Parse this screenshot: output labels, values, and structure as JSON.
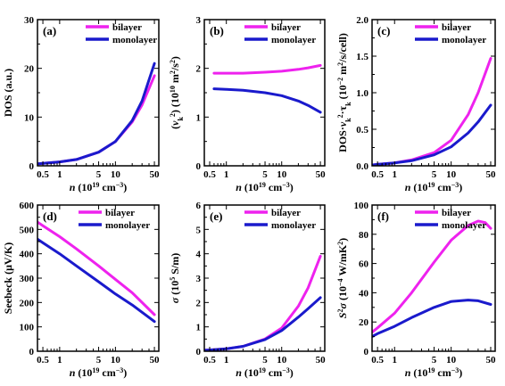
{
  "colors": {
    "bilayer": "#ee22ee",
    "monolayer": "#1a1acc"
  },
  "chart_data": [
    {
      "panel": "(a)",
      "type": "line",
      "ylabel_parts": [
        {
          "t": "DOS (a.u.)"
        }
      ],
      "xlabel_parts": [
        {
          "t": "n",
          "i": true
        },
        {
          "t": " (10"
        },
        {
          "t": "19",
          "s": "sup"
        },
        {
          "t": " cm"
        },
        {
          "t": "−3",
          "s": "sup"
        },
        {
          "t": ")"
        }
      ],
      "xscale": "log",
      "xlim": [
        0.4,
        60
      ],
      "ylim": [
        0,
        30
      ],
      "xticks": [
        0.5,
        1,
        5,
        10,
        50
      ],
      "xtick_labels": [
        "0.5",
        "1",
        "5",
        "10",
        "50"
      ],
      "yticks": [
        0,
        10,
        20,
        30
      ],
      "ytick_labels": [
        "0",
        "10",
        "20",
        "30"
      ],
      "legend": "top-left-inside",
      "series": [
        {
          "name": "bilayer",
          "x": [
            0.4,
            0.5,
            1,
            2,
            5,
            10,
            20,
            30,
            50
          ],
          "y": [
            0.4,
            0.5,
            0.8,
            1.3,
            2.8,
            5.0,
            9.0,
            12.5,
            18.5
          ]
        },
        {
          "name": "monolayer",
          "x": [
            0.4,
            0.5,
            1,
            2,
            5,
            10,
            20,
            30,
            50
          ],
          "y": [
            0.4,
            0.5,
            0.8,
            1.3,
            2.8,
            5.0,
            9.3,
            13.3,
            21.0
          ]
        }
      ]
    },
    {
      "panel": "(b)",
      "type": "line",
      "ylabel_parts": [
        {
          "t": "("
        },
        {
          "t": "v",
          "i": true
        },
        {
          "t": "k",
          "s": "sub"
        },
        {
          "t": "2",
          "s": "sup"
        },
        {
          "t": ") (10"
        },
        {
          "t": "10",
          "s": "sup"
        },
        {
          "t": " m"
        },
        {
          "t": "2",
          "s": "sup"
        },
        {
          "t": "/s"
        },
        {
          "t": "2",
          "s": "sup"
        },
        {
          "t": ")"
        }
      ],
      "xlabel_parts": [
        {
          "t": "n",
          "i": true
        },
        {
          "t": " (10"
        },
        {
          "t": "19",
          "s": "sup"
        },
        {
          "t": " cm"
        },
        {
          "t": "−3",
          "s": "sup"
        },
        {
          "t": ")"
        }
      ],
      "xscale": "log",
      "xlim": [
        0.4,
        60
      ],
      "ylim": [
        0,
        3
      ],
      "xticks": [
        0.5,
        1,
        5,
        10,
        50
      ],
      "xtick_labels": [
        "0.5",
        "1",
        "5",
        "10",
        "50"
      ],
      "yticks": [
        0,
        1,
        2,
        3
      ],
      "ytick_labels": [
        "0",
        "1",
        "2",
        "3"
      ],
      "legend": "top-right",
      "series": [
        {
          "name": "bilayer",
          "x": [
            0.6,
            1,
            2,
            5,
            10,
            20,
            30,
            50
          ],
          "y": [
            1.9,
            1.9,
            1.9,
            1.92,
            1.94,
            1.98,
            2.01,
            2.06
          ]
        },
        {
          "name": "monolayer",
          "x": [
            0.6,
            1,
            2,
            5,
            10,
            20,
            30,
            50
          ],
          "y": [
            1.58,
            1.57,
            1.55,
            1.5,
            1.44,
            1.33,
            1.24,
            1.1
          ]
        }
      ]
    },
    {
      "panel": "(c)",
      "type": "line",
      "ylabel_parts": [
        {
          "t": "DOS·"
        },
        {
          "t": "v",
          "i": true
        },
        {
          "t": "k",
          "s": "sub"
        },
        {
          "t": "2",
          "s": "sup"
        },
        {
          "t": "·τ"
        },
        {
          "t": "k",
          "s": "sub"
        },
        {
          "t": " (10"
        },
        {
          "t": "−2",
          "s": "sup"
        },
        {
          "t": " m"
        },
        {
          "t": "2",
          "s": "sup"
        },
        {
          "t": "/s/cell)"
        }
      ],
      "xlabel_parts": [
        {
          "t": "n",
          "i": true
        },
        {
          "t": " (10"
        },
        {
          "t": "19",
          "s": "sup"
        },
        {
          "t": " cm"
        },
        {
          "t": "−3",
          "s": "sup"
        },
        {
          "t": ")"
        }
      ],
      "xscale": "log",
      "xlim": [
        0.4,
        60
      ],
      "ylim": [
        0,
        2.0
      ],
      "xticks": [
        0.5,
        1,
        5,
        10,
        50
      ],
      "xtick_labels": [
        "0.5",
        "1",
        "5",
        "10",
        "50"
      ],
      "yticks": [
        0,
        0.5,
        1.0,
        1.5,
        2.0
      ],
      "ytick_labels": [
        "0.0",
        "0.5",
        "1.0",
        "1.5",
        "2.0"
      ],
      "legend": "top-right",
      "series": [
        {
          "name": "bilayer",
          "x": [
            0.4,
            0.5,
            1,
            2,
            5,
            10,
            20,
            30,
            50
          ],
          "y": [
            0.01,
            0.02,
            0.04,
            0.08,
            0.18,
            0.35,
            0.7,
            1.0,
            1.47
          ]
        },
        {
          "name": "monolayer",
          "x": [
            0.4,
            0.5,
            1,
            2,
            5,
            10,
            20,
            30,
            50
          ],
          "y": [
            0.01,
            0.02,
            0.04,
            0.07,
            0.15,
            0.26,
            0.45,
            0.6,
            0.83
          ]
        }
      ]
    },
    {
      "panel": "(d)",
      "type": "line",
      "ylabel_parts": [
        {
          "t": "Seebeck (μV/K)"
        }
      ],
      "xlabel_parts": [
        {
          "t": "n",
          "i": true
        },
        {
          "t": " (10"
        },
        {
          "t": "19",
          "s": "sup"
        },
        {
          "t": " cm"
        },
        {
          "t": "−3",
          "s": "sup"
        },
        {
          "t": ")"
        }
      ],
      "xscale": "log",
      "xlim": [
        0.4,
        60
      ],
      "ylim": [
        0,
        600
      ],
      "xticks": [
        0.5,
        1,
        5,
        10,
        50
      ],
      "xtick_labels": [
        "0.5",
        "1",
        "5",
        "10",
        "50"
      ],
      "yticks": [
        0,
        100,
        200,
        300,
        400,
        500,
        600
      ],
      "ytick_labels": [
        "0",
        "100",
        "200",
        "300",
        "400",
        "500",
        "600"
      ],
      "legend": "top-right",
      "series": [
        {
          "name": "bilayer",
          "x": [
            0.4,
            0.5,
            1,
            2,
            5,
            10,
            20,
            50
          ],
          "y": [
            530,
            515,
            470,
            420,
            350,
            295,
            240,
            150
          ]
        },
        {
          "name": "monolayer",
          "x": [
            0.4,
            0.5,
            1,
            2,
            5,
            10,
            20,
            50
          ],
          "y": [
            460,
            445,
            400,
            350,
            285,
            235,
            190,
            122
          ]
        }
      ]
    },
    {
      "panel": "(e)",
      "type": "line",
      "ylabel_parts": [
        {
          "t": "σ",
          "i": true
        },
        {
          "t": " (10"
        },
        {
          "t": "5",
          "s": "sup"
        },
        {
          "t": " S/m)"
        }
      ],
      "xlabel_parts": [
        {
          "t": "n",
          "i": true
        },
        {
          "t": " (10"
        },
        {
          "t": "19",
          "s": "sup"
        },
        {
          "t": " cm"
        },
        {
          "t": "−3",
          "s": "sup"
        },
        {
          "t": ")"
        }
      ],
      "xscale": "log",
      "xlim": [
        0.4,
        60
      ],
      "ylim": [
        0,
        6
      ],
      "xticks": [
        0.5,
        1,
        5,
        10,
        50
      ],
      "xtick_labels": [
        "0.5",
        "1",
        "5",
        "10",
        "50"
      ],
      "yticks": [
        0,
        1,
        2,
        3,
        4,
        5,
        6
      ],
      "ytick_labels": [
        "0",
        "1",
        "2",
        "3",
        "4",
        "5",
        "6"
      ],
      "legend": "top-right",
      "series": [
        {
          "name": "bilayer",
          "x": [
            0.4,
            0.5,
            1,
            2,
            5,
            10,
            20,
            30,
            50
          ],
          "y": [
            0.04,
            0.05,
            0.1,
            0.2,
            0.5,
            0.95,
            1.85,
            2.6,
            3.9
          ]
        },
        {
          "name": "monolayer",
          "x": [
            0.4,
            0.5,
            1,
            2,
            5,
            10,
            20,
            30,
            50
          ],
          "y": [
            0.04,
            0.05,
            0.1,
            0.2,
            0.48,
            0.85,
            1.4,
            1.75,
            2.2
          ]
        }
      ]
    },
    {
      "panel": "(f)",
      "type": "line",
      "ylabel_parts": [
        {
          "t": "S",
          "i": true
        },
        {
          "t": "2",
          "s": "sup"
        },
        {
          "t": "σ",
          "i": true
        },
        {
          "t": " (10"
        },
        {
          "t": "−4",
          "s": "sup"
        },
        {
          "t": " W/mK"
        },
        {
          "t": "2",
          "s": "sup"
        },
        {
          "t": ")"
        }
      ],
      "xlabel_parts": [
        {
          "t": "n",
          "i": true
        },
        {
          "t": " (10"
        },
        {
          "t": "19",
          "s": "sup"
        },
        {
          "t": " cm"
        },
        {
          "t": "−3",
          "s": "sup"
        },
        {
          "t": ")"
        }
      ],
      "xscale": "log",
      "xlim": [
        0.4,
        60
      ],
      "ylim": [
        0,
        100
      ],
      "xticks": [
        0.5,
        1,
        5,
        10,
        50
      ],
      "xtick_labels": [
        "0.5",
        "1",
        "5",
        "10",
        "50"
      ],
      "yticks": [
        0,
        20,
        40,
        60,
        80,
        100
      ],
      "ytick_labels": [
        "0",
        "20",
        "40",
        "60",
        "80",
        "100"
      ],
      "legend": "top-right",
      "series": [
        {
          "name": "bilayer",
          "x": [
            0.4,
            0.5,
            1,
            2,
            5,
            10,
            20,
            30,
            40,
            50
          ],
          "y": [
            13,
            16,
            26,
            40,
            61,
            76,
            86,
            89,
            88,
            84
          ]
        },
        {
          "name": "monolayer",
          "x": [
            0.4,
            0.5,
            1,
            2,
            5,
            10,
            20,
            30,
            50
          ],
          "y": [
            10,
            12,
            17,
            23,
            30,
            34,
            35,
            34.5,
            32
          ]
        }
      ]
    }
  ]
}
